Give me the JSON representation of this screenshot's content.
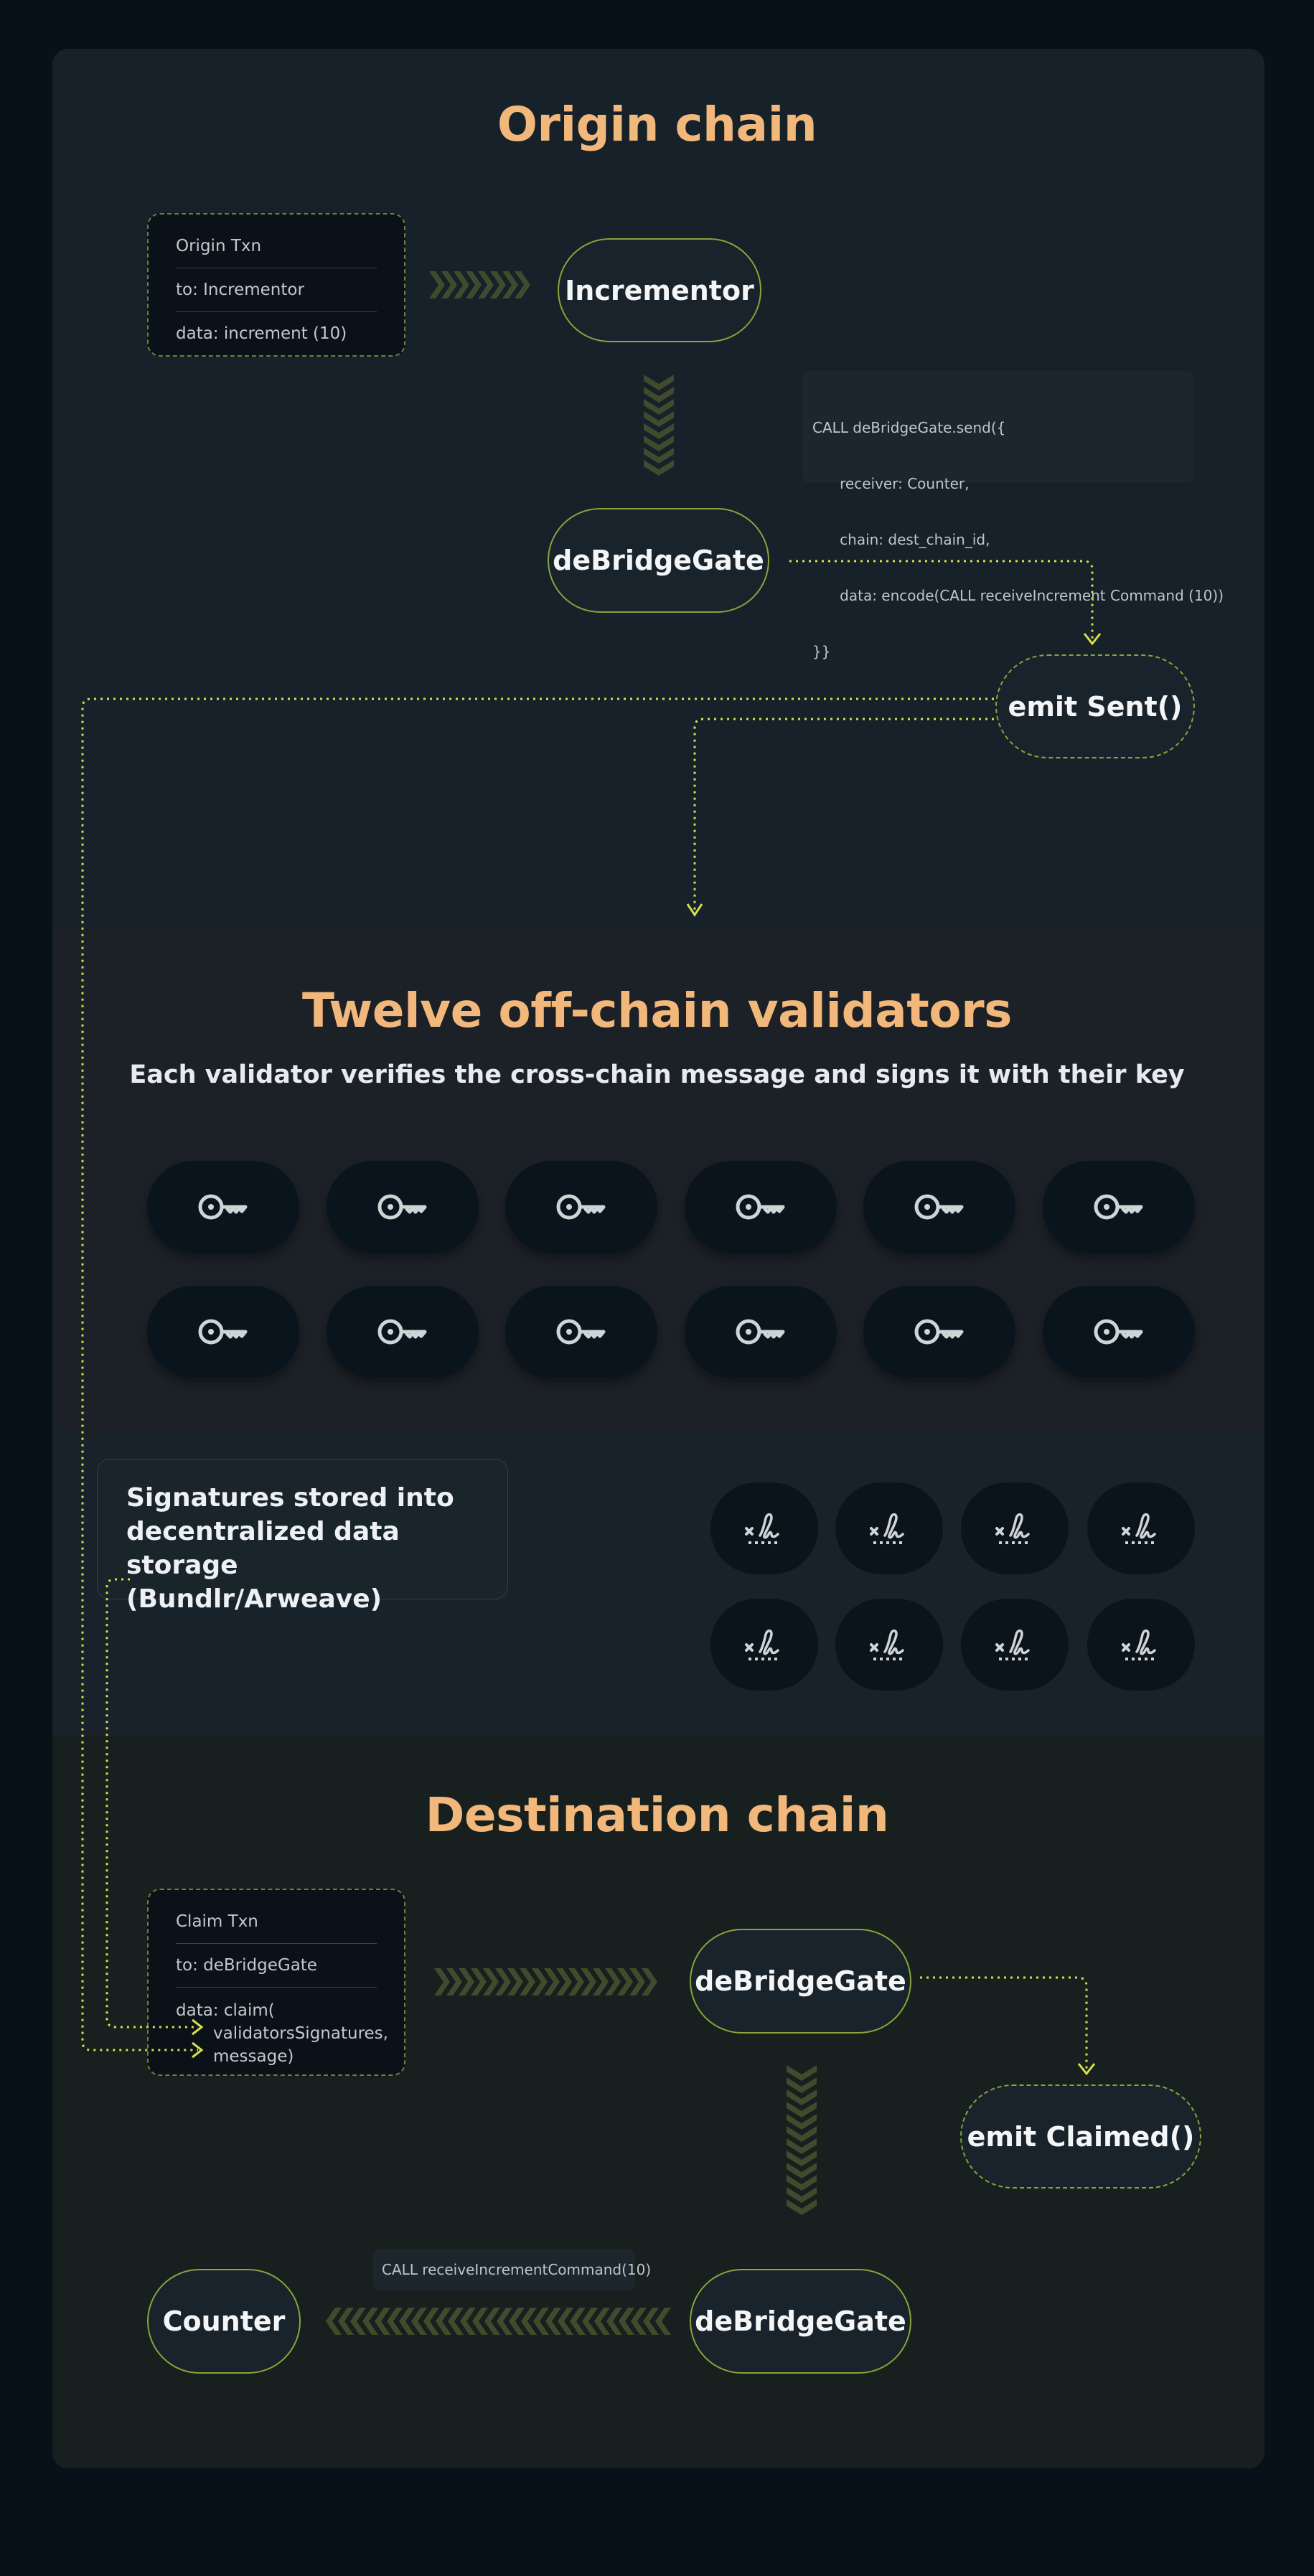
{
  "origin": {
    "title": "Origin chain",
    "txn": [
      "Origin Txn",
      "to: Incrementor",
      "data: increment (10)"
    ],
    "incrementor": "Incrementor",
    "gate": "deBridgeGate",
    "code": [
      "CALL deBridgeGate.send({",
      "      receiver: Counter,",
      "      chain: dest_chain_id,",
      "      data: encode(CALL receiveIncrement Command (10))",
      "}}"
    ],
    "event": "emit Sent()"
  },
  "validators": {
    "title": "Twelve off-chain validators",
    "subtitle": "Each validator verifies the cross-chain message and signs it with their key",
    "count": 12,
    "icon": "key-icon"
  },
  "storage": {
    "lines": [
      "Signatures stored into",
      "decentralized  data storage",
      "(Bundlr/Arweave)"
    ],
    "signature_count": 8,
    "icon": "signature-icon"
  },
  "destination": {
    "title": "Destination chain",
    "txn": {
      "title": "Claim Txn",
      "to": "to: deBridgeGate",
      "data": [
        "data: claim(",
        "validatorsSignatures,",
        "message)"
      ]
    },
    "gate_top": "deBridgeGate",
    "event": "emit Claimed()",
    "call_label": "CALL receiveIncrementCommand(10)",
    "gate_bottom": "deBridgeGate",
    "counter": "Counter"
  },
  "colors": {
    "accent_title": "#f2b77a",
    "line": "#d6e04a",
    "border": "#8ba33a",
    "chevron": "#3f4b2c"
  }
}
